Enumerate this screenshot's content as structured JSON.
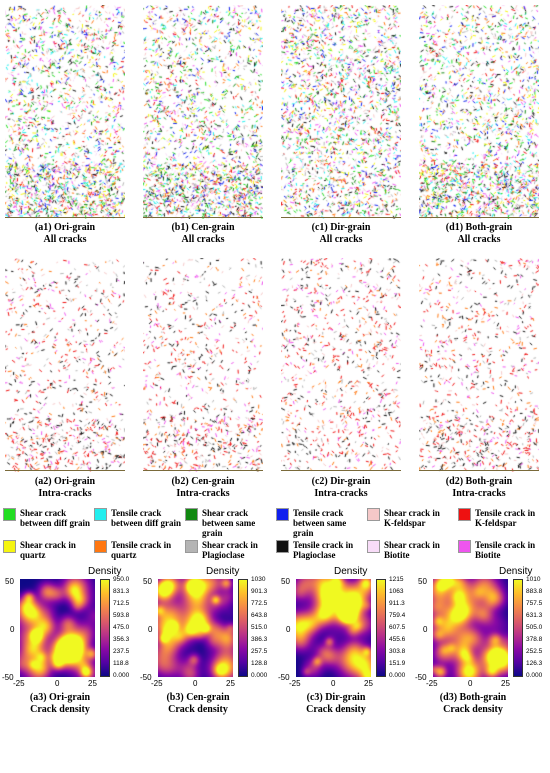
{
  "crack_panels_row1": [
    {
      "title": "(a1) Ori-grain",
      "subtitle": "All cracks"
    },
    {
      "title": "(b1) Cen-grain",
      "subtitle": "All cracks"
    },
    {
      "title": "(c1) Dir-grain",
      "subtitle": "All cracks"
    },
    {
      "title": "(d1) Both-grain",
      "subtitle": "All cracks"
    }
  ],
  "crack_panels_row2": [
    {
      "title": "(a2) Ori-grain",
      "subtitle": "Intra-cracks"
    },
    {
      "title": "(b2) Cen-grain",
      "subtitle": "Intra-cracks"
    },
    {
      "title": "(c2) Dir-grain",
      "subtitle": "Intra-cracks"
    },
    {
      "title": "(d2) Both-grain",
      "subtitle": "Intra-cracks"
    }
  ],
  "legend": [
    {
      "line1": "Shear crack",
      "line2": "between diff grain",
      "color": "#22dd22"
    },
    {
      "line1": "Tensile crack",
      "line2": "between diff grain",
      "color": "#22eeee"
    },
    {
      "line1": "Shear crack",
      "line2": "between same grain",
      "color": "#118811"
    },
    {
      "line1": "Tensile crack",
      "line2": "between same grain",
      "color": "#1020ee"
    },
    {
      "line1": "Shear crack in",
      "line2": "K-feldspar",
      "color": "#f5c8c8"
    },
    {
      "line1": "Tensile crack in",
      "line2": "K-feldspar",
      "color": "#ee1111"
    },
    {
      "line1": "Shear crack in",
      "line2": "quartz",
      "color": "#f5f511"
    },
    {
      "line1": "Tensile crack in",
      "line2": "quartz",
      "color": "#ff7711"
    },
    {
      "line1": "Shear crack in",
      "line2": "Plagioclase",
      "color": "#b4b4b4"
    },
    {
      "line1": "Tensile crack in",
      "line2": "Plagioclase",
      "color": "#111111"
    },
    {
      "line1": "Shear crack in",
      "line2": "Biotite",
      "color": "#f8dcf8"
    },
    {
      "line1": "Tensile crack in",
      "line2": "Biotite",
      "color": "#ee55ee"
    }
  ],
  "density_panels": [
    {
      "title": "(a3) Ori-grain",
      "subtitle": "Crack density",
      "colorbar_title": "Density",
      "colorbar_ticks": [
        "950.0",
        "831.3",
        "712.5",
        "593.8",
        "475.0",
        "356.3",
        "237.5",
        "118.8",
        "0.000"
      ]
    },
    {
      "title": "(b3) Cen-grain",
      "subtitle": "Crack density",
      "colorbar_title": "Density",
      "colorbar_ticks": [
        "1030",
        "901.3",
        "772.5",
        "643.8",
        "515.0",
        "386.3",
        "257.5",
        "128.8",
        "0.000"
      ]
    },
    {
      "title": "(c3) Dir-grain",
      "subtitle": "Crack density",
      "colorbar_title": "Density",
      "colorbar_ticks": [
        "1215",
        "1063",
        "911.3",
        "759.4",
        "607.5",
        "455.6",
        "303.8",
        "151.9",
        "0.000"
      ]
    },
    {
      "title": "(d3) Both-grain",
      "subtitle": "Crack density",
      "colorbar_title": "Density",
      "colorbar_ticks": [
        "1010",
        "883.8",
        "757.5",
        "631.3",
        "505.0",
        "378.8",
        "252.5",
        "126.3",
        "0.000"
      ]
    }
  ],
  "density_axes": {
    "y_ticks": [
      "50",
      "0",
      "-50"
    ],
    "x_ticks": [
      "-25",
      "0",
      "25"
    ]
  }
}
